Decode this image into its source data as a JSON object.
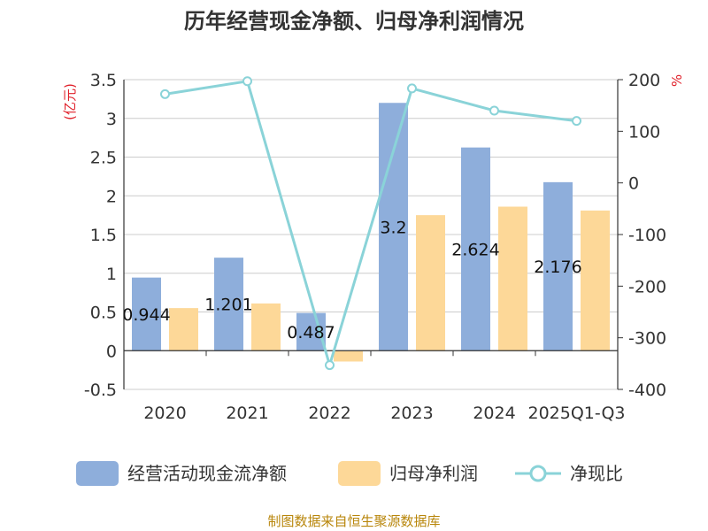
{
  "chart_data": {
    "type": "bar",
    "title": "历年经营现金净额、归母净利润情况",
    "categories": [
      "2020",
      "2021",
      "2022",
      "2023",
      "2024",
      "2025Q1-Q3"
    ],
    "series": [
      {
        "name": "经营活动现金流净额",
        "type": "bar",
        "axis": "left",
        "color": "#8eaedb",
        "values": [
          0.944,
          1.201,
          0.487,
          3.2,
          2.624,
          2.176
        ],
        "labels": [
          "0.944",
          "1.201",
          "0.487",
          "3.2",
          "2.624",
          "2.176"
        ]
      },
      {
        "name": "归母净利润",
        "type": "bar",
        "axis": "left",
        "color": "#fdd898",
        "values": [
          0.55,
          0.61,
          -0.14,
          1.75,
          1.86,
          1.81
        ]
      },
      {
        "name": "净现比",
        "type": "line",
        "axis": "right",
        "color": "#8ad3d8",
        "values": [
          172,
          197,
          -353,
          183,
          140,
          120
        ]
      }
    ],
    "y_left": {
      "unit": "(亿元)",
      "min": -0.5,
      "max": 3.5,
      "ticks": [
        -0.5,
        0,
        0.5,
        1,
        1.5,
        2,
        2.5,
        3,
        3.5
      ],
      "tick_labels": [
        "-0.5",
        "0",
        "0.5",
        "1",
        "1.5",
        "2",
        "2.5",
        "3",
        "3.5"
      ]
    },
    "y_right": {
      "unit": "%",
      "min": -400,
      "max": 200,
      "ticks": [
        -400,
        -300,
        -200,
        -100,
        0,
        100,
        200
      ],
      "tick_labels": [
        "-400",
        "-300",
        "-200",
        "-100",
        "0",
        "100",
        "200"
      ]
    },
    "grid": true,
    "legend_position": "bottom"
  },
  "source": "制图数据来自恒生聚源数据库"
}
